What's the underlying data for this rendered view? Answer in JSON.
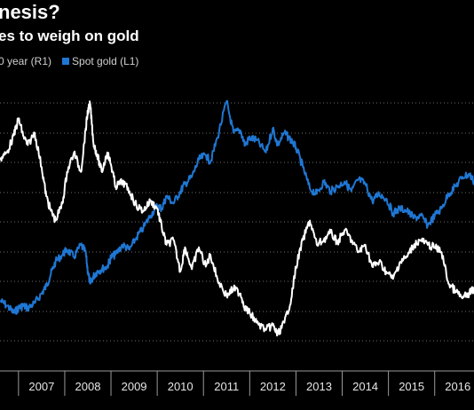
{
  "header": {
    "title": "nesis?",
    "subtitle": "es to weigh on gold"
  },
  "chart_data": {
    "type": "line",
    "title": "nesis?",
    "subtitle": "es to weigh on gold",
    "legend": {
      "placement": "top-left",
      "entries": [
        {
          "label": "0 year (R1)",
          "color": "#ffffff"
        },
        {
          "label": "Spot gold (L1)",
          "color": "#1f77d4"
        }
      ]
    },
    "grid": "horizontal dotted",
    "x_ticks": [
      "2007",
      "2008",
      "2009",
      "2010",
      "2011",
      "2012",
      "2013",
      "2014",
      "2015",
      "2016"
    ],
    "xlim": [
      2006.6,
      2016.85
    ],
    "y_range": [
      0,
      100
    ],
    "series": [
      {
        "name": "0 year (R1)",
        "color": "#ffffff",
        "x": [
          2006.6,
          2006.75,
          2006.9,
          2007.0,
          2007.1,
          2007.2,
          2007.35,
          2007.5,
          2007.6,
          2007.7,
          2007.8,
          2007.95,
          2008.05,
          2008.2,
          2008.35,
          2008.45,
          2008.5,
          2008.55,
          2008.62,
          2008.7,
          2008.8,
          2008.92,
          2009.0,
          2009.1,
          2009.25,
          2009.4,
          2009.55,
          2009.7,
          2009.85,
          2010.0,
          2010.1,
          2010.2,
          2010.35,
          2010.5,
          2010.6,
          2010.75,
          2010.9,
          2011.05,
          2011.15,
          2011.3,
          2011.5,
          2011.65,
          2011.8,
          2011.9,
          2012.0,
          2012.15,
          2012.35,
          2012.5,
          2012.6,
          2012.75,
          2012.9,
          2013.0,
          2013.15,
          2013.3,
          2013.45,
          2013.6,
          2013.75,
          2013.9,
          2014.05,
          2014.2,
          2014.35,
          2014.5,
          2014.65,
          2014.8,
          2014.95,
          2015.1,
          2015.25,
          2015.4,
          2015.55,
          2015.7,
          2015.85,
          2016.0,
          2016.15,
          2016.3,
          2016.45,
          2016.6,
          2016.75,
          2016.85
        ],
        "values": [
          73,
          76,
          83,
          90,
          83,
          79,
          84,
          70,
          58,
          52,
          48,
          55,
          68,
          76,
          68,
          85,
          93,
          96,
          80,
          75,
          68,
          76,
          71,
          62,
          64,
          60,
          54,
          52,
          56,
          53,
          45,
          38,
          40,
          27,
          37,
          28,
          37,
          29,
          34,
          24,
          17,
          20,
          18,
          12,
          10,
          6,
          3,
          5,
          1,
          6,
          16,
          29,
          40,
          48,
          38,
          40,
          43,
          39,
          44,
          40,
          35,
          38,
          29,
          31,
          27,
          24,
          31,
          33,
          38,
          40,
          38,
          37,
          35,
          22,
          19,
          16,
          18,
          20
        ]
      },
      {
        "name": "Spot gold (L1)",
        "color": "#1f77d4",
        "x": [
          2006.6,
          2006.75,
          2006.9,
          2007.0,
          2007.1,
          2007.2,
          2007.35,
          2007.5,
          2007.6,
          2007.7,
          2007.8,
          2007.95,
          2008.05,
          2008.2,
          2008.35,
          2008.45,
          2008.5,
          2008.55,
          2008.62,
          2008.7,
          2008.8,
          2008.92,
          2009.0,
          2009.1,
          2009.25,
          2009.4,
          2009.55,
          2009.7,
          2009.85,
          2010.0,
          2010.1,
          2010.2,
          2010.35,
          2010.5,
          2010.6,
          2010.75,
          2010.9,
          2011.05,
          2011.15,
          2011.3,
          2011.5,
          2011.65,
          2011.8,
          2011.9,
          2012.0,
          2012.15,
          2012.35,
          2012.5,
          2012.6,
          2012.75,
          2012.9,
          2013.0,
          2013.15,
          2013.3,
          2013.45,
          2013.6,
          2013.75,
          2013.9,
          2014.05,
          2014.2,
          2014.35,
          2014.5,
          2014.65,
          2014.8,
          2014.95,
          2015.1,
          2015.25,
          2015.4,
          2015.55,
          2015.7,
          2015.85,
          2016.0,
          2016.15,
          2016.3,
          2016.45,
          2016.6,
          2016.75,
          2016.85
        ],
        "values": [
          15,
          13,
          10,
          12,
          13,
          12,
          14,
          18,
          21,
          26,
          31,
          34,
          36,
          33,
          38,
          35,
          27,
          22,
          25,
          27,
          28,
          29,
          33,
          34,
          38,
          36,
          41,
          45,
          50,
          54,
          53,
          58,
          55,
          60,
          63,
          66,
          73,
          75,
          72,
          82,
          97,
          84,
          85,
          79,
          82,
          81,
          76,
          86,
          79,
          84,
          81,
          78,
          70,
          61,
          59,
          64,
          60,
          62,
          64,
          60,
          65,
          63,
          56,
          59,
          57,
          51,
          53,
          52,
          49,
          50,
          46,
          50,
          53,
          59,
          62,
          66,
          67,
          64
        ]
      }
    ]
  }
}
